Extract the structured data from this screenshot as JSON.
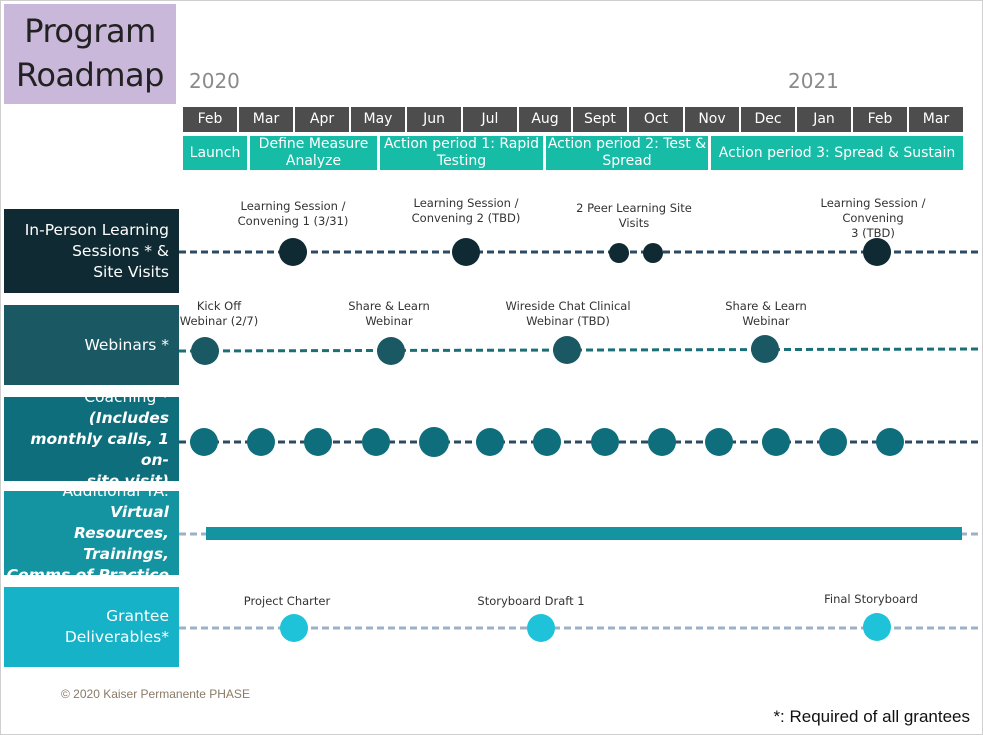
{
  "title": {
    "line1": "Program",
    "line2": "Roadmap"
  },
  "years": [
    "2020",
    "2021"
  ],
  "months": [
    "Feb",
    "Mar",
    "Apr",
    "May",
    "Jun",
    "Jul",
    "Aug",
    "Sept",
    "Oct",
    "Nov",
    "Dec",
    "Jan",
    "Feb",
    "Mar"
  ],
  "phases": {
    "launch": "Launch",
    "define_1": "Define Measure",
    "define_2": "Analyze",
    "ap1_1": "Action period 1: Rapid",
    "ap1_2": "Testing",
    "ap2_1": "Action period 2: Test &",
    "ap2_2": "Spread",
    "ap3": "Action period 3: Spread & Sustain"
  },
  "rows": {
    "in_person": {
      "l1": "In-Person Learning",
      "l2": "Sessions * &",
      "l3": "Site Visits",
      "color": "#0f2a33"
    },
    "webinars": {
      "label": "Webinars *",
      "color": "#1a5964"
    },
    "coaching": {
      "prefix": "Coaching * ",
      "b1": "(Includes",
      "b2": "monthly calls, 1 on-",
      "b3": "site visit)",
      "color": "#0e6e7b"
    },
    "ta": {
      "prefix": "Additional TA: ",
      "b1": "Virtual",
      "b2": "Resources, Trainings,",
      "b3": "Comms of Practice",
      "color": "#1493a0"
    },
    "deliverables": {
      "label": "Grantee Deliverables*",
      "color": "#16b2c8"
    }
  },
  "events": {
    "ip1_l1": "Learning Session /",
    "ip1_l2": "Convening 1 (3/31)",
    "ip2_l1": "Learning Session /",
    "ip2_l2": "Convening 2 (TBD)",
    "ip3_l1": "2 Peer Learning Site",
    "ip3_l2": "Visits",
    "ip4_l1": "Learning Session / Convening",
    "ip4_l2": "3 (TBD)",
    "w1_l1": "Kick Off",
    "w1_l2": "Webinar (2/7)",
    "w2_l1": "Share & Learn",
    "w2_l2": "Webinar",
    "w3_l1": "Wireside Chat Clinical",
    "w3_l2": "Webinar (TBD)",
    "w4_l1": "Share & Learn Webinar",
    "d1": "Project Charter",
    "d2": "Storyboard Draft 1",
    "d3": "Final Storyboard"
  },
  "copyright": "© 2020 Kaiser Permanente PHASE",
  "footnote": "*: Required of all grantees",
  "colors": {
    "title_bg": "#c9b8da",
    "month_bg": "#4d4d4d",
    "phase_bg": "#17bca6"
  }
}
